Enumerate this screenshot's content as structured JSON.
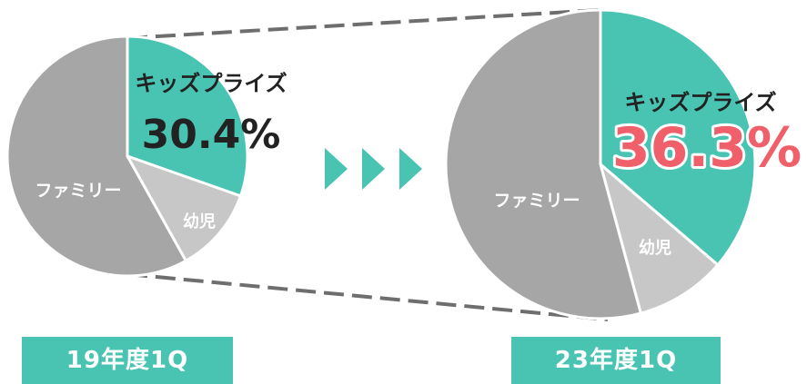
{
  "colors": {
    "kids_prize": "#49c4b3",
    "infant": "#c7c7c7",
    "family": "#a6a6a6",
    "highlight_text": "#f0606a",
    "connector": "#6e6e6e",
    "arrows": "#49c4b3"
  },
  "arrow_icon": "triangle-right",
  "chart_data": [
    {
      "type": "pie",
      "period": "19年度1Q",
      "slices": [
        {
          "label": "キッズプライズ",
          "value": 30.4,
          "value_label": "30.4%",
          "color": "#49c4b3"
        },
        {
          "label": "幼児",
          "value": 11.5,
          "color": "#c7c7c7"
        },
        {
          "label": "ファミリー",
          "value": 58.1,
          "color": "#a6a6a6"
        }
      ]
    },
    {
      "type": "pie",
      "period": "23年度1Q",
      "slices": [
        {
          "label": "キッズプライズ",
          "value": 36.3,
          "value_label": "36.3%",
          "color": "#49c4b3"
        },
        {
          "label": "幼児",
          "value": 9.5,
          "color": "#c7c7c7"
        },
        {
          "label": "ファミリー",
          "value": 54.2,
          "color": "#a6a6a6"
        }
      ]
    }
  ]
}
